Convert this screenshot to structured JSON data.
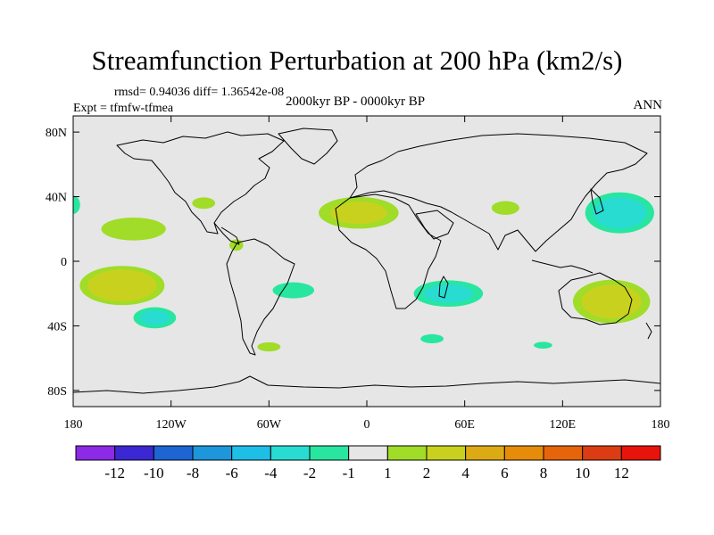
{
  "title": "Streamfunction Perturbation at 200 hPa (km2/s)",
  "stats": "rmsd= 0.94036 diff= 1.36542e-08",
  "experiment": "Expt = tfmfw-tfmea",
  "period": "2000kyr BP - 0000kyr BP",
  "season": "ANN",
  "map": {
    "projection": "cylindrical-equidistant",
    "lon_range": [
      -180,
      180
    ],
    "lat_range": [
      -90,
      90
    ],
    "background_color": "#e6e6e6",
    "coastline_color": "#000000"
  },
  "axes": {
    "y_ticks": [
      {
        "lat": 80,
        "label": "80N"
      },
      {
        "lat": 40,
        "label": "40N"
      },
      {
        "lat": 0,
        "label": "0"
      },
      {
        "lat": -40,
        "label": "40S"
      },
      {
        "lat": -80,
        "label": "80S"
      }
    ],
    "x_ticks": [
      {
        "lon": -180,
        "label": "180"
      },
      {
        "lon": -120,
        "label": "120W"
      },
      {
        "lon": -60,
        "label": "60W"
      },
      {
        "lon": 0,
        "label": "0"
      },
      {
        "lon": 60,
        "label": "60E"
      },
      {
        "lon": 120,
        "label": "120E"
      },
      {
        "lon": 180,
        "label": "180"
      }
    ]
  },
  "colorbar": {
    "colors": [
      "#8c2ae6",
      "#3c28d2",
      "#1e64d2",
      "#1e96dc",
      "#1ebee6",
      "#28dcd2",
      "#28e6a0",
      "#e6e6e6",
      "#a0dc28",
      "#c8d21e",
      "#dcaa14",
      "#e68c0a",
      "#e6640a",
      "#dc3c14",
      "#e6140a"
    ],
    "labels": [
      "-12",
      "-10",
      "-8",
      "-6",
      "-4",
      "-2",
      "-1",
      "1",
      "2",
      "4",
      "6",
      "8",
      "10",
      "12"
    ]
  },
  "chart_data": {
    "type": "filled-contour-map",
    "variable": "Streamfunction Perturbation at 200 hPa (km2/s)",
    "levels": [
      -12,
      -10,
      -8,
      -6,
      -4,
      -2,
      -1,
      1,
      2,
      4,
      6,
      8,
      10,
      12
    ],
    "anomalies": [
      {
        "name": "north-pacific-east",
        "center": [
          -143,
          20
        ],
        "extent": [
          28,
          10
        ],
        "max_level": 2,
        "peak": 1.5
      },
      {
        "name": "tropical-south-pacific",
        "center": [
          -150,
          -15
        ],
        "extent": [
          30,
          14
        ],
        "max_level": 4,
        "peak": 3.5
      },
      {
        "name": "south-pacific-midlat",
        "center": [
          -130,
          -35
        ],
        "extent": [
          16,
          8
        ],
        "max_level": -2,
        "peak": -2.5
      },
      {
        "name": "south-america-south",
        "center": [
          -60,
          -53
        ],
        "extent": [
          10,
          4
        ],
        "max_level": 2,
        "peak": 1.5
      },
      {
        "name": "central-america",
        "center": [
          -80,
          10
        ],
        "extent": [
          6,
          5
        ],
        "max_level": 2,
        "peak": 1.5
      },
      {
        "name": "west-atlantic-north",
        "center": [
          -100,
          36
        ],
        "extent": [
          10,
          5
        ],
        "max_level": 2,
        "peak": 1.5
      },
      {
        "name": "south-atlantic",
        "center": [
          -45,
          -18
        ],
        "extent": [
          18,
          7
        ],
        "max_level": -1,
        "peak": -1.5
      },
      {
        "name": "north-atlantic-africa",
        "center": [
          -5,
          30
        ],
        "extent": [
          30,
          12
        ],
        "max_level": 4,
        "peak": 2.5
      },
      {
        "name": "indian-ocean-south",
        "center": [
          50,
          -20
        ],
        "extent": [
          26,
          10
        ],
        "max_level": -2,
        "peak": -2.5
      },
      {
        "name": "southern-indian",
        "center": [
          40,
          -48
        ],
        "extent": [
          10,
          4
        ],
        "max_level": -1,
        "peak": -1.5
      },
      {
        "name": "south-of-australia",
        "center": [
          108,
          -52
        ],
        "extent": [
          8,
          3
        ],
        "max_level": -1,
        "peak": -1.5
      },
      {
        "name": "northwest-pacific",
        "center": [
          155,
          30
        ],
        "extent": [
          25,
          15
        ],
        "max_level": -2,
        "peak": -3
      },
      {
        "name": "australia-southwest-pacific",
        "center": [
          150,
          -25
        ],
        "extent": [
          28,
          16
        ],
        "max_level": 4,
        "peak": 3
      },
      {
        "name": "india-north",
        "center": [
          85,
          33
        ],
        "extent": [
          12,
          6
        ],
        "max_level": 2,
        "peak": 1.5
      },
      {
        "name": "east-atlantic-west",
        "center": [
          -180,
          35
        ],
        "extent": [
          6,
          8
        ],
        "max_level": -1,
        "peak": -1.5
      }
    ]
  }
}
